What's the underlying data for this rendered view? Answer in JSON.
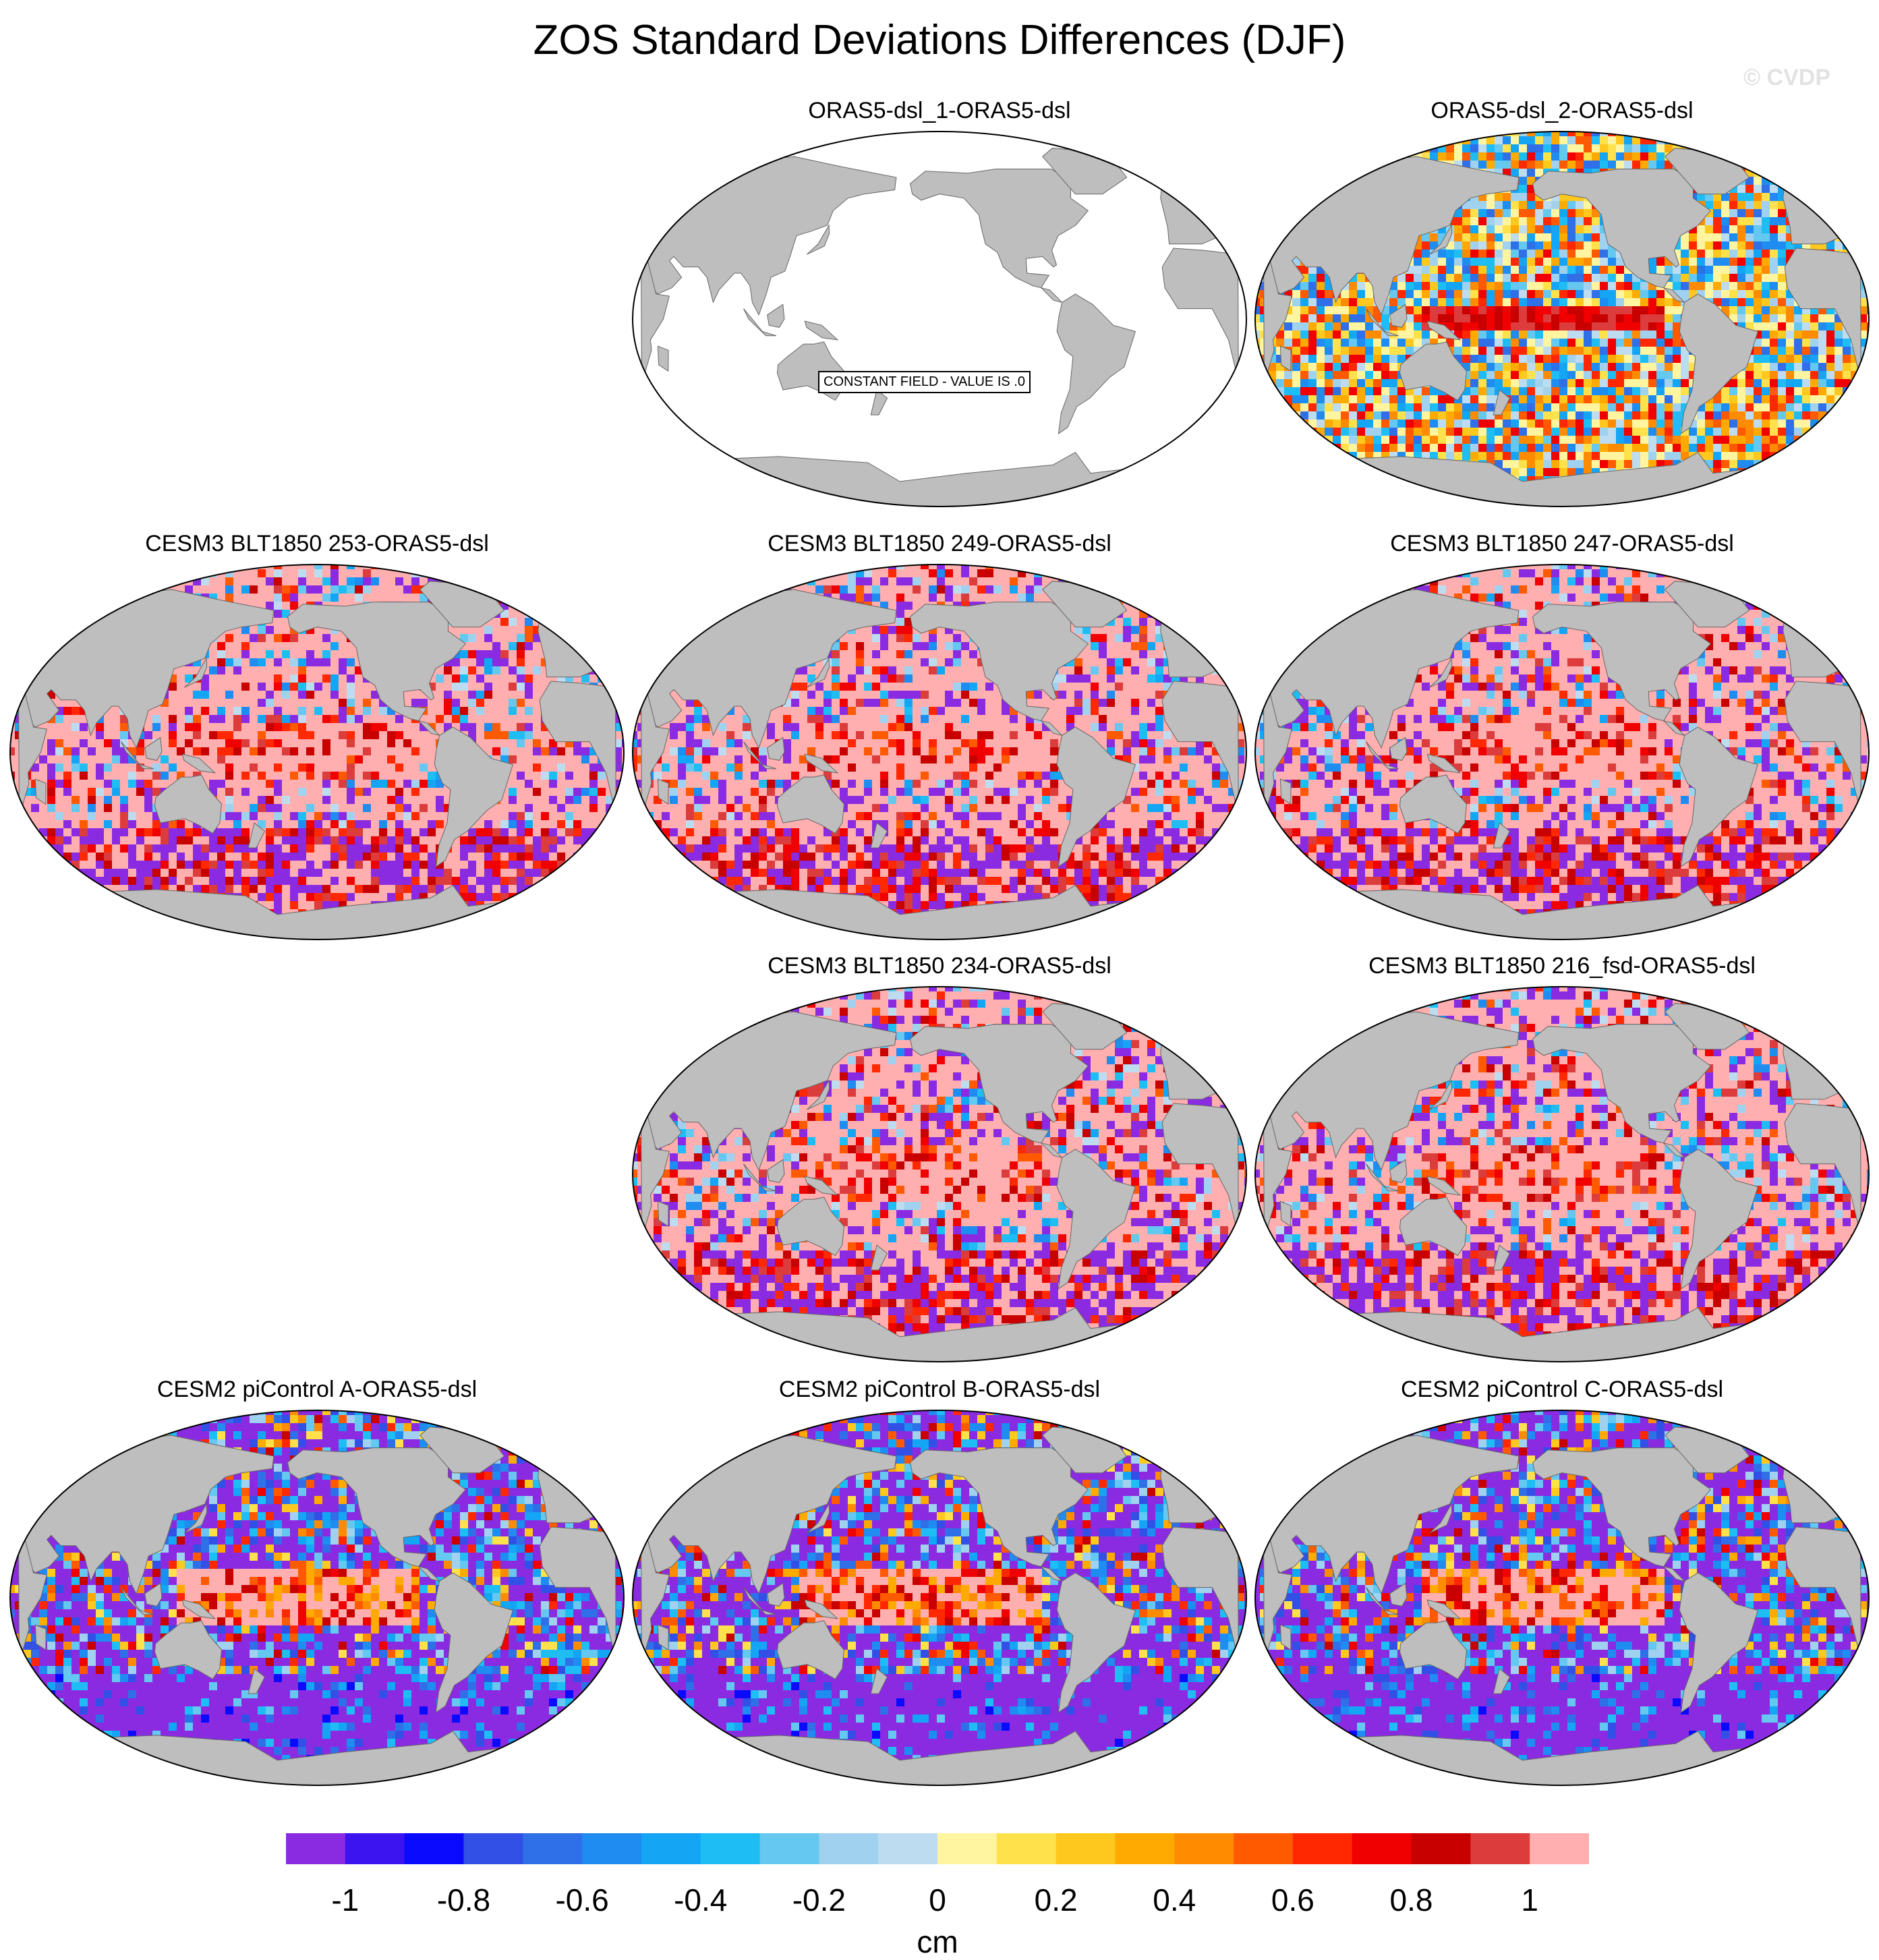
{
  "title": "ZOS Standard Deviations Differences (DJF)",
  "watermark": "© CVDP",
  "colorbar": {
    "unit": "cm",
    "tick_labels": [
      "-1",
      "-0.8",
      "-0.6",
      "-0.4",
      "-0.2",
      "0",
      "0.2",
      "0.4",
      "0.6",
      "0.8",
      "1"
    ],
    "levels": [
      -1.1,
      -1.0,
      -0.9,
      -0.8,
      -0.7,
      -0.6,
      -0.5,
      -0.4,
      -0.3,
      -0.2,
      -0.1,
      0.0,
      0.1,
      0.2,
      0.3,
      0.4,
      0.5,
      0.6,
      0.7,
      0.8,
      0.9,
      1.0,
      1.1
    ],
    "colors": [
      "#8a2be2",
      "#3c14f0",
      "#0a0aff",
      "#3250e6",
      "#2f6fe8",
      "#1e8cf0",
      "#14a5f5",
      "#1ebef5",
      "#64c8f0",
      "#a0d2f0",
      "#bedcf0",
      "#fff5a0",
      "#ffe14b",
      "#ffc81e",
      "#ffaa00",
      "#ff8c00",
      "#ff5a00",
      "#ff2800",
      "#f00000",
      "#c80000",
      "#dc3c3c",
      "#ffafaf"
    ]
  },
  "land_color": "#bebebe",
  "ocean_blank_color": "#ffffff",
  "panels": [
    {
      "id": "p1",
      "title": "ORAS5-dsl_1-ORAS5-dsl",
      "constant_label": "CONSTANT FIELD - VALUE IS .0",
      "pattern": "constant"
    },
    {
      "id": "p2",
      "title": "ORAS5-dsl_2-ORAS5-dsl",
      "pattern": "mixed"
    },
    {
      "id": "p3",
      "title": "CESM3 BLT1850 253-ORAS5-dsl",
      "pattern": "positive"
    },
    {
      "id": "p4",
      "title": "CESM3 BLT1850 249-ORAS5-dsl",
      "pattern": "positive"
    },
    {
      "id": "p5",
      "title": "CESM3 BLT1850 247-ORAS5-dsl",
      "pattern": "positive"
    },
    {
      "id": "p6",
      "title": "CESM3 BLT1850 234-ORAS5-dsl",
      "pattern": "positive"
    },
    {
      "id": "p7",
      "title": "CESM3 BLT1850 216_fsd-ORAS5-dsl",
      "pattern": "positive"
    },
    {
      "id": "p8",
      "title": "CESM2 piControl A-ORAS5-dsl",
      "pattern": "negative"
    },
    {
      "id": "p9",
      "title": "CESM2 piControl B-ORAS5-dsl",
      "pattern": "negative"
    },
    {
      "id": "p10",
      "title": "CESM2 piControl C-ORAS5-dsl",
      "pattern": "negative"
    }
  ]
}
